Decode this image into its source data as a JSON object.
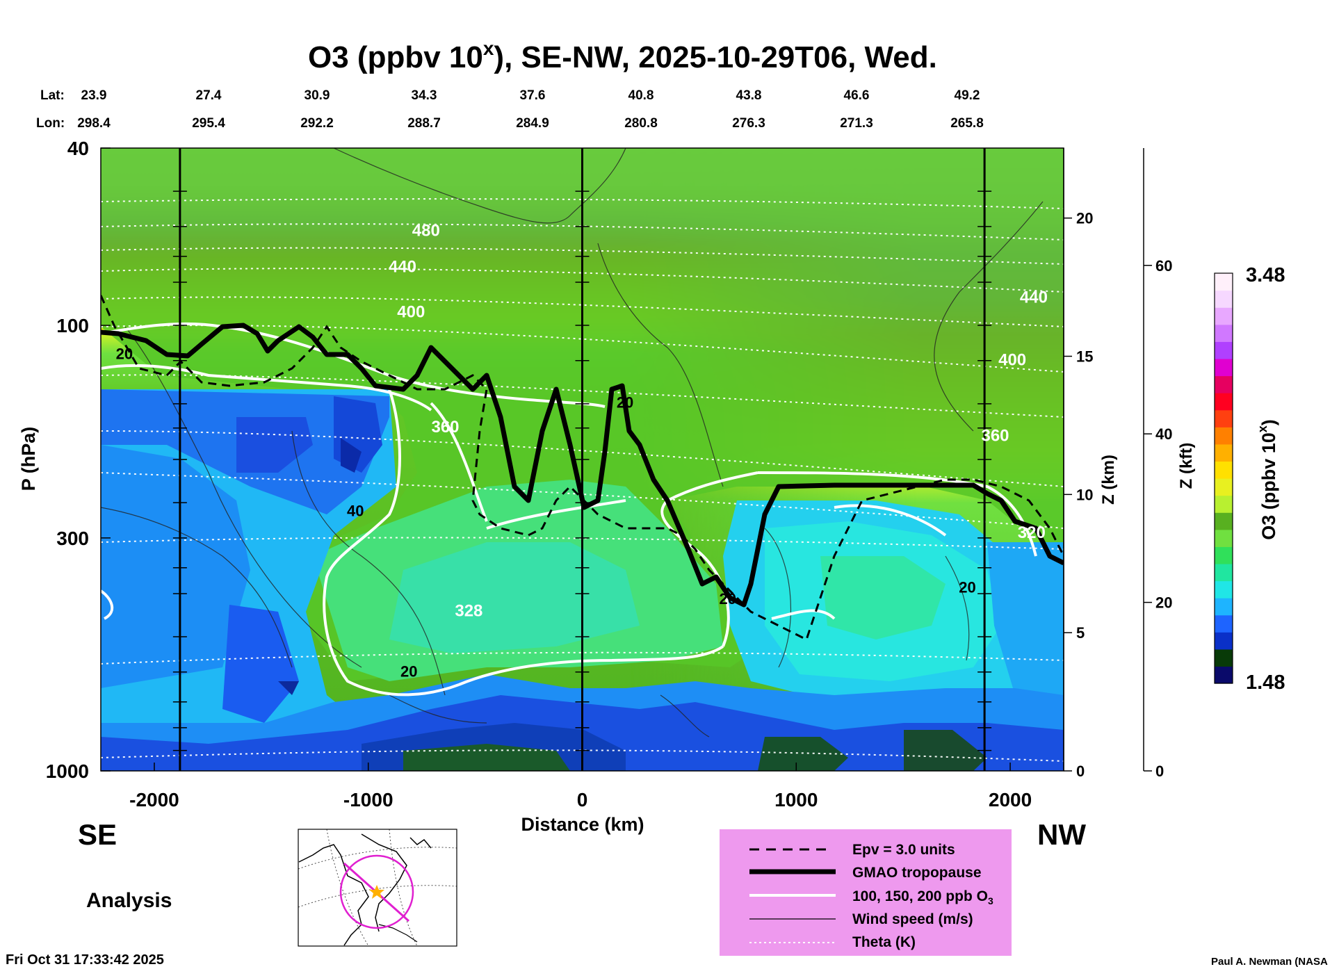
{
  "header": {
    "title_main": "O3 (ppbv 10",
    "title_sup": "x",
    "title_rest": "), SE-NW, 2025-10-29T06, Wed."
  },
  "coords": {
    "lat_label": "Lat:",
    "lon_label": "Lon:",
    "lat": [
      "23.9",
      "27.4",
      "30.9",
      "34.3",
      "37.6",
      "40.8",
      "43.8",
      "46.6",
      "49.2"
    ],
    "lon": [
      "298.4",
      "295.4",
      "292.2",
      "288.7",
      "284.9",
      "280.8",
      "276.3",
      "271.3",
      "265.8"
    ]
  },
  "chart_data": {
    "type": "heatmap",
    "xlabel": "Distance (km)",
    "ylabel": "P (hPa)",
    "right_axis1_label": "Z (km)",
    "right_axis2_label": "Z (kft)",
    "xlim": [
      -2250,
      2250
    ],
    "ylim": [
      1000,
      40
    ],
    "y_scale": "log",
    "x_ticks": [
      "-2000",
      "-1000",
      "0",
      "1000",
      "2000"
    ],
    "x_tick_values": [
      -2000,
      -1000,
      0,
      1000,
      2000
    ],
    "y_ticks": [
      "40",
      "100",
      "300",
      "1000"
    ],
    "y_tick_values": [
      40,
      100,
      300,
      1000
    ],
    "z_km_ticks": [
      "20",
      "15",
      "10",
      "5",
      "0"
    ],
    "z_km_values": [
      20,
      15,
      10,
      5,
      0
    ],
    "z_kft_ticks": [
      "60",
      "40",
      "20",
      "0"
    ],
    "z_kft_values": [
      60,
      40,
      20,
      0
    ],
    "vertical_lines_km": [
      -1880,
      0,
      1880
    ],
    "theta_labels": [
      {
        "text": "480",
        "x": -730,
        "p": 63
      },
      {
        "text": "440",
        "x": -840,
        "p": 76
      },
      {
        "text": "400",
        "x": -800,
        "p": 96
      },
      {
        "text": "360",
        "x": -640,
        "p": 174
      },
      {
        "text": "328",
        "x": -530,
        "p": 450
      },
      {
        "text": "440",
        "x": 2110,
        "p": 89
      },
      {
        "text": "400",
        "x": 2010,
        "p": 123
      },
      {
        "text": "360",
        "x": 1930,
        "p": 182
      },
      {
        "text": "320",
        "x": 2100,
        "p": 300
      }
    ],
    "wind_labels": [
      {
        "text": "20",
        "x": -2140,
        "p": 119
      },
      {
        "text": "40",
        "x": -1060,
        "p": 268
      },
      {
        "text": "20",
        "x": -810,
        "p": 615
      },
      {
        "text": "20",
        "x": 200,
        "p": 153
      },
      {
        "text": "20",
        "x": 680,
        "p": 422
      },
      {
        "text": "20",
        "x": 1800,
        "p": 398
      }
    ],
    "colorbar": {
      "label_main": "O3 (ppbv 10",
      "label_sup": "x",
      "label_rest": ")",
      "min": "1.48",
      "max": "3.48",
      "colors": [
        "#0a0a6a",
        "#083a08",
        "#0a30c8",
        "#1e64ff",
        "#1eb4ff",
        "#20e6e6",
        "#20e6a0",
        "#30e05a",
        "#70e040",
        "#58b020",
        "#b8f030",
        "#e8f020",
        "#ffe000",
        "#ffb000",
        "#ff8000",
        "#ff4010",
        "#ff0020",
        "#e60060",
        "#e000d0",
        "#b040ff",
        "#d078ff",
        "#e8a8ff",
        "#f6d8ff",
        "#fff0fa"
      ]
    }
  },
  "labels": {
    "se": "SE",
    "nw": "NW",
    "analysis": "Analysis"
  },
  "legend": {
    "items": [
      "Epv = 3.0 units",
      "GMAO tropopause",
      "100, 150, 200 ppb O",
      "Wind speed (m/s)",
      "Theta (K)"
    ],
    "o3_sub": "3"
  },
  "footer": {
    "timestamp": "Fri Oct 31 17:33:42 2025",
    "credit": "Paul A. Newman (NASA"
  }
}
